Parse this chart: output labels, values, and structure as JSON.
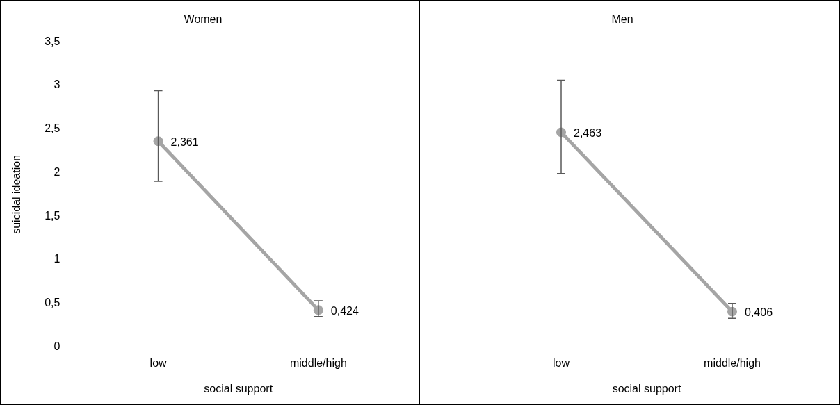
{
  "chart_data": [
    {
      "type": "line",
      "title": "Women",
      "xlabel": "social support",
      "ylabel": "suicidal ideation",
      "categories": [
        "low",
        "middle/high"
      ],
      "ylim": [
        0,
        3.5
      ],
      "yticks": [
        0,
        {
          "value": 0.5,
          "label": "0,5"
        },
        1,
        {
          "value": 1.5,
          "label": "1,5"
        },
        2,
        {
          "value": 2.5,
          "label": "2,5"
        },
        3,
        {
          "value": 3.5,
          "label": "3,5"
        }
      ],
      "series": [
        {
          "color": "#a5a5a5",
          "values": [
            2.361,
            0.424
          ],
          "errors": [
            [
              1.9,
              2.94
            ],
            [
              0.35,
              0.53
            ]
          ],
          "value_labels": [
            "2,361",
            "0,424"
          ]
        }
      ],
      "marker": "circle",
      "grid": false,
      "legend": false
    },
    {
      "type": "line",
      "title": "Men",
      "xlabel": "social support",
      "categories": [
        "low",
        "middle/high"
      ],
      "ylim": [
        0,
        3.5
      ],
      "tick_labels": "x",
      "series": [
        {
          "color": "#a5a5a5",
          "values": [
            2.463,
            0.406
          ],
          "errors": [
            [
              1.99,
              3.06
            ],
            [
              0.33,
              0.5
            ]
          ],
          "value_labels": [
            "2,463",
            "0,406"
          ]
        }
      ],
      "marker": "circle",
      "grid": false,
      "legend": false
    }
  ]
}
